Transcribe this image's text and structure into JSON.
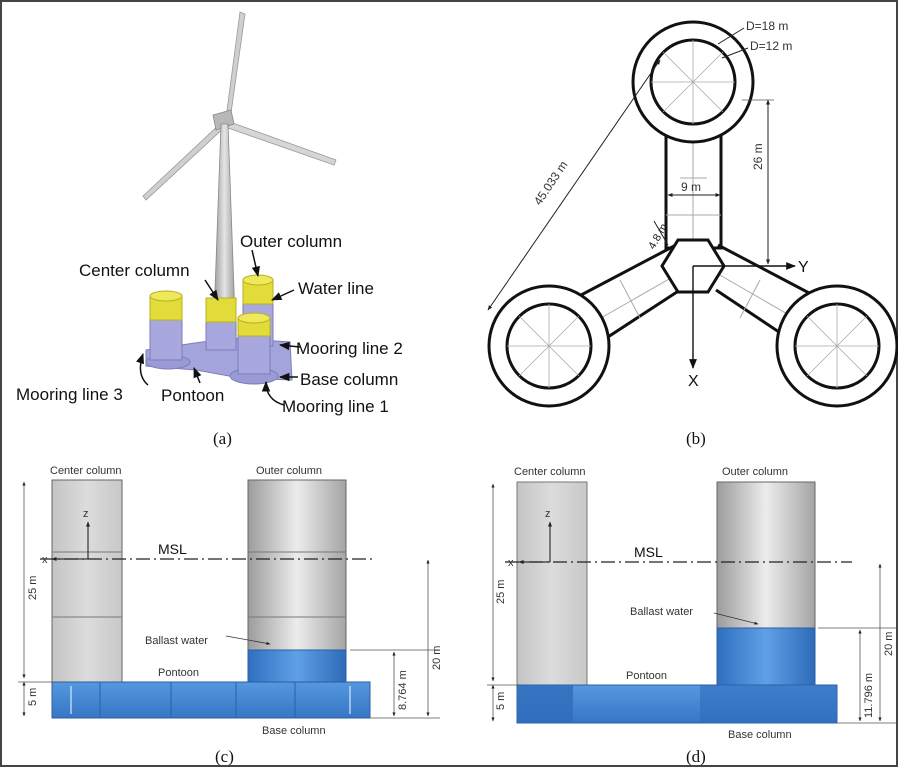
{
  "panel_a": {
    "caption": "(a)",
    "labels": {
      "outer_column": "Outer column",
      "center_column": "Center column",
      "water_line": "Water line",
      "mooring_line_2": "Mooring line 2",
      "base_column": "Base column",
      "mooring_line_3": "Mooring line 3",
      "pontoon": "Pontoon",
      "mooring_line_1": "Mooring line 1"
    }
  },
  "panel_b": {
    "caption": "(b)",
    "labels": {
      "d_outer": "D=18 m",
      "d_inner": "D=12 m",
      "length_diag": "45.033 m",
      "height_26": "26 m",
      "width_9": "9 m",
      "width_48": "4.8 m",
      "axis_y": "Y",
      "axis_x": "X"
    }
  },
  "panel_c": {
    "caption": "(c)",
    "labels": {
      "center_column": "Center column",
      "outer_column": "Outer column",
      "msl": "MSL",
      "axis_z": "z",
      "axis_x": "x",
      "dim_25": "25 m",
      "dim_5": "5 m",
      "dim_20": "20 m",
      "dim_ballast": "8.764 m",
      "ballast_water": "Ballast water",
      "pontoon": "Pontoon",
      "base_column": "Base column"
    }
  },
  "panel_d": {
    "caption": "(d)",
    "labels": {
      "center_column": "Center column",
      "outer_column": "Outer column",
      "msl": "MSL",
      "axis_z": "z",
      "axis_x": "x",
      "dim_25": "25 m",
      "dim_5": "5 m",
      "dim_20": "20 m",
      "dim_ballast": "11.796 m",
      "ballast_water": "Ballast water",
      "pontoon": "Pontoon",
      "base_column": "Base column"
    }
  },
  "colors": {
    "column_yellow": "#e2dc3a",
    "column_lavender": "#a4a4dc",
    "ballast_blue": "#3b7fd0",
    "pontoon_blue": "#4a8ed8",
    "column_grey": "#cfcfcf"
  }
}
